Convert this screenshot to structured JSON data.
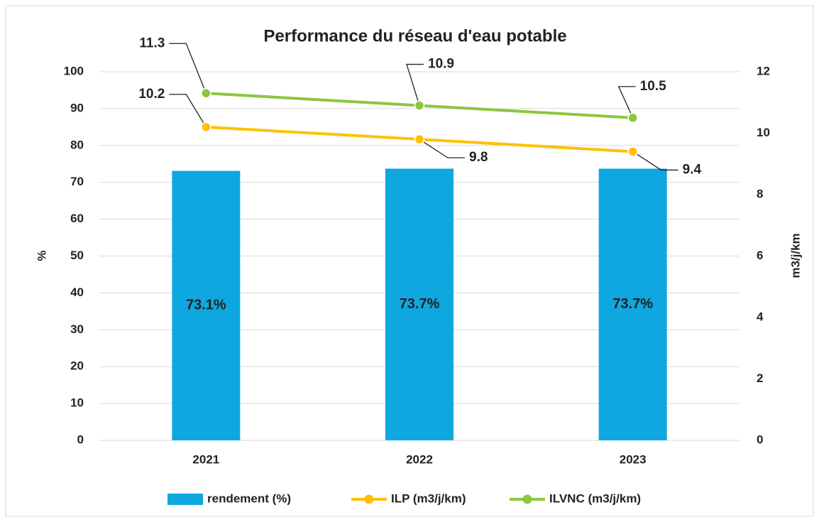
{
  "chart_data": {
    "type": "bar",
    "title": "Performance du réseau d'eau potable",
    "y_label": "%",
    "y2_label": "m3/j/km",
    "categories": [
      "2021",
      "2022",
      "2023"
    ],
    "series": [
      {
        "name": "rendement (%)",
        "type": "bar",
        "color": "#0ea7df",
        "values": [
          73.1,
          73.7,
          73.7
        ],
        "value_labels": [
          "73.1%",
          "73.7%",
          "73.7%"
        ]
      },
      {
        "name": "ILP (m3/j/km)",
        "type": "line",
        "axis": "y2",
        "color": "#ffc000",
        "values": [
          10.2,
          9.8,
          9.4
        ]
      },
      {
        "name": "ILVNC (m3/j/km)",
        "type": "line",
        "axis": "y2",
        "color": "#8cc63e",
        "values": [
          11.3,
          10.9,
          10.5
        ]
      }
    ],
    "ylim": [
      0,
      100
    ],
    "yticks": [
      0,
      10,
      20,
      30,
      40,
      50,
      60,
      70,
      80,
      90,
      100
    ],
    "y2lim": [
      0,
      12
    ],
    "y2ticks": [
      0,
      2,
      4,
      6,
      8,
      10,
      12
    ],
    "grid": true,
    "legend": "bottom"
  }
}
